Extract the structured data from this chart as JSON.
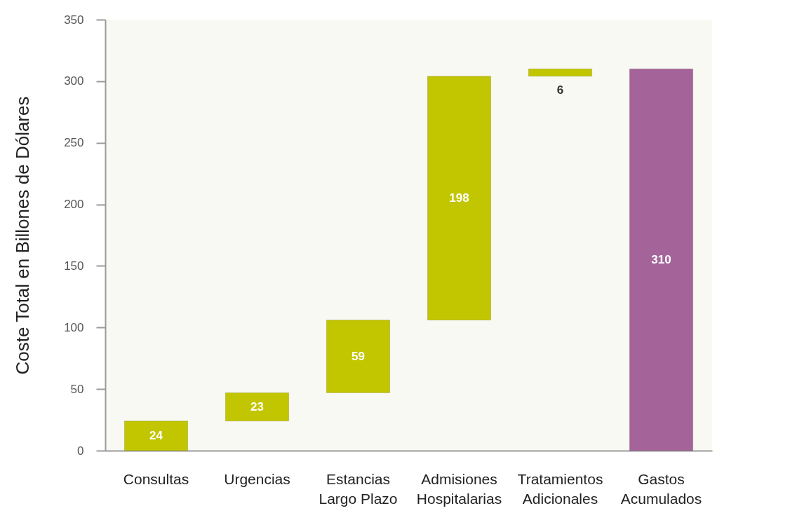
{
  "chart_data": {
    "type": "bar",
    "categories": [
      "Consultas",
      "Urgencias",
      "Estancias Largo Plazo",
      "Admisiones Hospitalarias",
      "Tratamientos Adicionales",
      "Gastos Acumulados"
    ],
    "values": [
      24,
      23,
      59,
      198,
      6,
      310
    ],
    "base": [
      0,
      24,
      47,
      106,
      304,
      0
    ],
    "colors": [
      "#c2c600",
      "#c2c600",
      "#c2c600",
      "#c2c600",
      "#c2c600",
      "#a46399"
    ],
    "ylabel": "Coste Total en Billones de Dólares",
    "ylim": [
      0,
      350
    ],
    "yticks": [
      0,
      50,
      100,
      150,
      200,
      250,
      300,
      350
    ],
    "data_labels": true
  }
}
